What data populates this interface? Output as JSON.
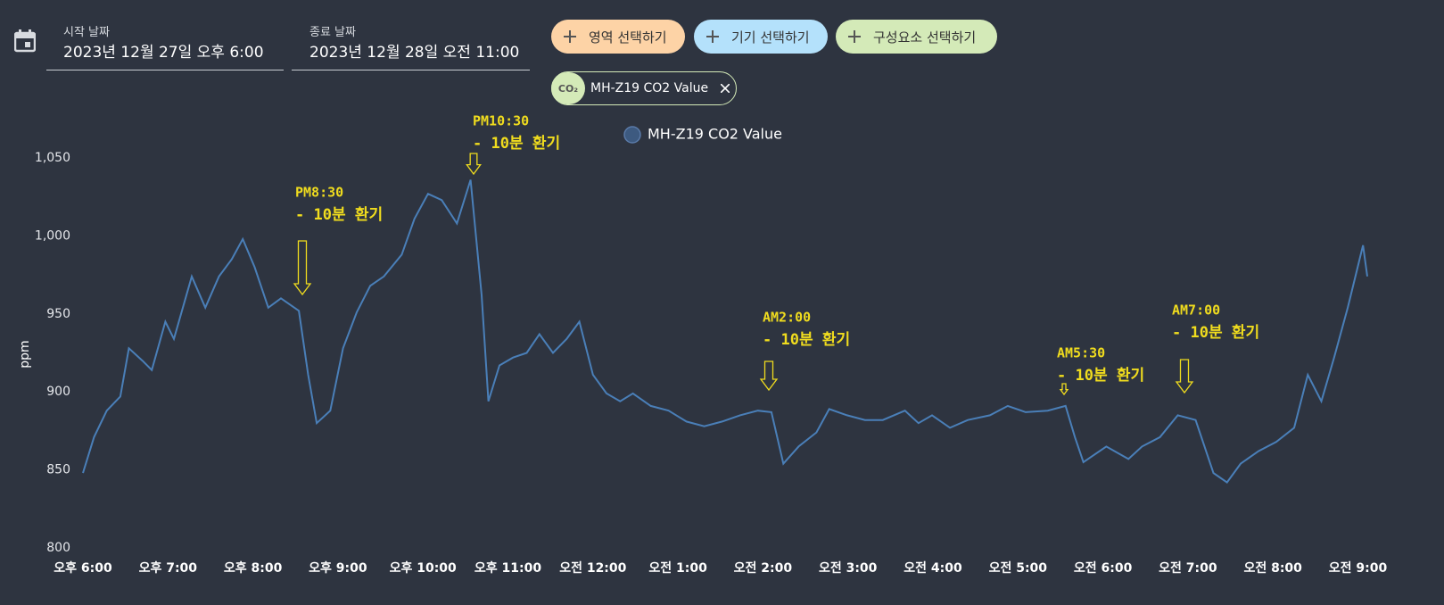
{
  "header": {
    "start_label": "시작 날짜",
    "start_value": "2023년 12월 27일 오후 6:00",
    "end_label": "종료 날짜",
    "end_value": "2023년 12월 28일 오전 11:00",
    "buttons": [
      "영역 선택하기",
      "기기 선택하기",
      "구성요소 선택하기"
    ],
    "chip_icon": "CO₂",
    "chip_label": "MH-Z19 CO2 Value"
  },
  "chart_data": {
    "type": "line",
    "y_label": "ppm",
    "x": [
      18.0,
      18.13,
      18.28,
      18.44,
      18.54,
      18.7,
      18.81,
      18.97,
      19.07,
      19.28,
      19.44,
      19.6,
      19.75,
      19.88,
      20.02,
      20.18,
      20.33,
      20.54,
      20.65,
      20.75,
      20.91,
      21.06,
      21.22,
      21.38,
      21.54,
      21.75,
      21.9,
      22.06,
      22.22,
      22.4,
      22.56,
      22.69,
      22.77,
      22.9,
      23.06,
      23.22,
      23.37,
      23.53,
      23.69,
      23.84,
      24.0,
      24.16,
      24.32,
      24.47,
      24.68,
      24.89,
      25.1,
      25.31,
      25.52,
      25.73,
      25.94,
      26.1,
      26.24,
      26.42,
      26.63,
      26.78,
      26.99,
      27.2,
      27.41,
      27.67,
      27.83,
      27.99,
      28.2,
      28.41,
      28.67,
      28.88,
      29.09,
      29.35,
      29.56,
      29.67,
      29.77,
      30.04,
      30.3,
      30.46,
      30.67,
      30.88,
      31.09,
      31.3,
      31.46,
      31.62,
      31.83,
      32.04,
      32.25,
      32.41,
      32.57,
      32.72,
      32.88,
      33.06,
      33.11
    ],
    "series": [
      {
        "name": "MH-Z19 CO2 Value",
        "color": "#4a7fb8",
        "values": [
          848,
          871,
          888,
          897,
          928,
          920,
          914,
          945,
          934,
          974,
          954,
          974,
          985,
          998,
          980,
          954,
          960,
          952,
          911,
          880,
          888,
          928,
          951,
          968,
          974,
          988,
          1011,
          1027,
          1023,
          1008,
          1036,
          962,
          894,
          917,
          922,
          925,
          937,
          925,
          934,
          945,
          911,
          899,
          894,
          899,
          891,
          888,
          881,
          878,
          881,
          885,
          888,
          887,
          854,
          865,
          874,
          889,
          885,
          882,
          882,
          888,
          880,
          885,
          877,
          882,
          885,
          891,
          887,
          888,
          891,
          871,
          855,
          865,
          857,
          865,
          871,
          885,
          882,
          848,
          842,
          854,
          862,
          868,
          877,
          911,
          894,
          922,
          954,
          994,
          974
        ]
      }
    ],
    "xlim": [
      18,
      33.15
    ],
    "xticks": [
      {
        "value": 18,
        "label": "오후 6:00"
      },
      {
        "value": 19,
        "label": "오후 7:00"
      },
      {
        "value": 20,
        "label": "오후 8:00"
      },
      {
        "value": 21,
        "label": "오후 9:00"
      },
      {
        "value": 22,
        "label": "오후 10:00"
      },
      {
        "value": 23,
        "label": "오후 11:00"
      },
      {
        "value": 24,
        "label": "오전 12:00"
      },
      {
        "value": 25,
        "label": "오전 1:00"
      },
      {
        "value": 26,
        "label": "오전 2:00"
      },
      {
        "value": 27,
        "label": "오전 3:00"
      },
      {
        "value": 28,
        "label": "오전 4:00"
      },
      {
        "value": 29,
        "label": "오전 5:00"
      },
      {
        "value": 30,
        "label": "오전 6:00"
      },
      {
        "value": 31,
        "label": "오전 7:00"
      },
      {
        "value": 32,
        "label": "오전 8:00"
      },
      {
        "value": 33,
        "label": "오전 9:00"
      }
    ],
    "ylim": [
      800,
      1050
    ],
    "yticks": [
      800,
      850,
      900,
      950,
      {
        "value": 1000,
        "label": "1,000"
      },
      {
        "value": 1050,
        "label": "1,050"
      }
    ],
    "grid": false,
    "annotations": [
      [
        "PM8:30",
        "- 10분 환기"
      ],
      [
        "PM10:30",
        "- 10분 환기"
      ],
      [
        "AM2:00",
        "- 10분 환기"
      ],
      [
        "AM5:30",
        "- 10분 환기"
      ],
      [
        "AM7:00",
        "- 10분 환기"
      ]
    ]
  }
}
